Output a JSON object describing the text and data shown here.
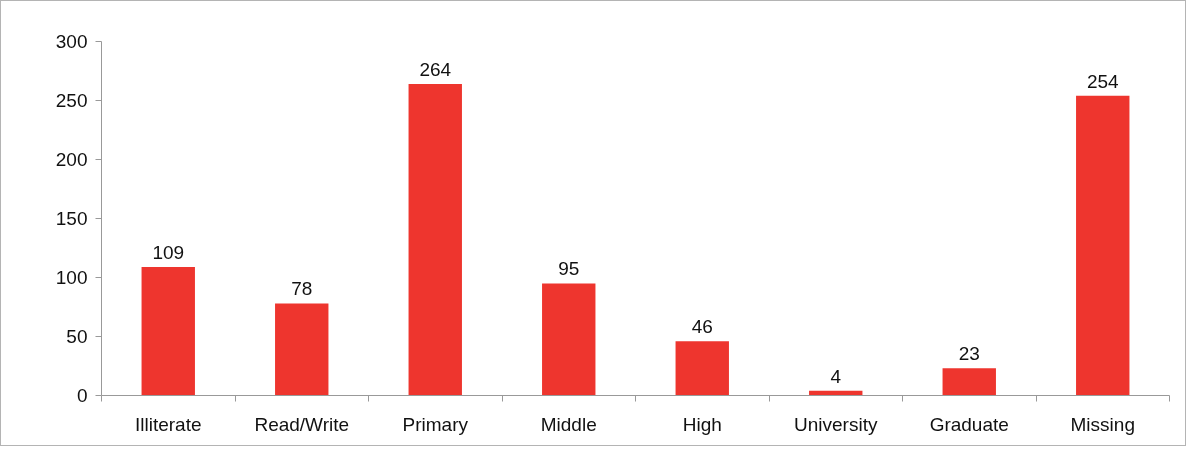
{
  "chart_data": {
    "type": "bar",
    "categories": [
      "Illiterate",
      "Read/Write",
      "Primary",
      "Middle",
      "High",
      "University",
      "Graduate",
      "Missing"
    ],
    "values": [
      109,
      78,
      264,
      95,
      46,
      4,
      23,
      254
    ],
    "color": "#ee352e",
    "ylim": [
      0,
      300
    ],
    "yticks": [
      0,
      50,
      100,
      150,
      200,
      250,
      300
    ],
    "data_labels": true,
    "grid": false
  }
}
